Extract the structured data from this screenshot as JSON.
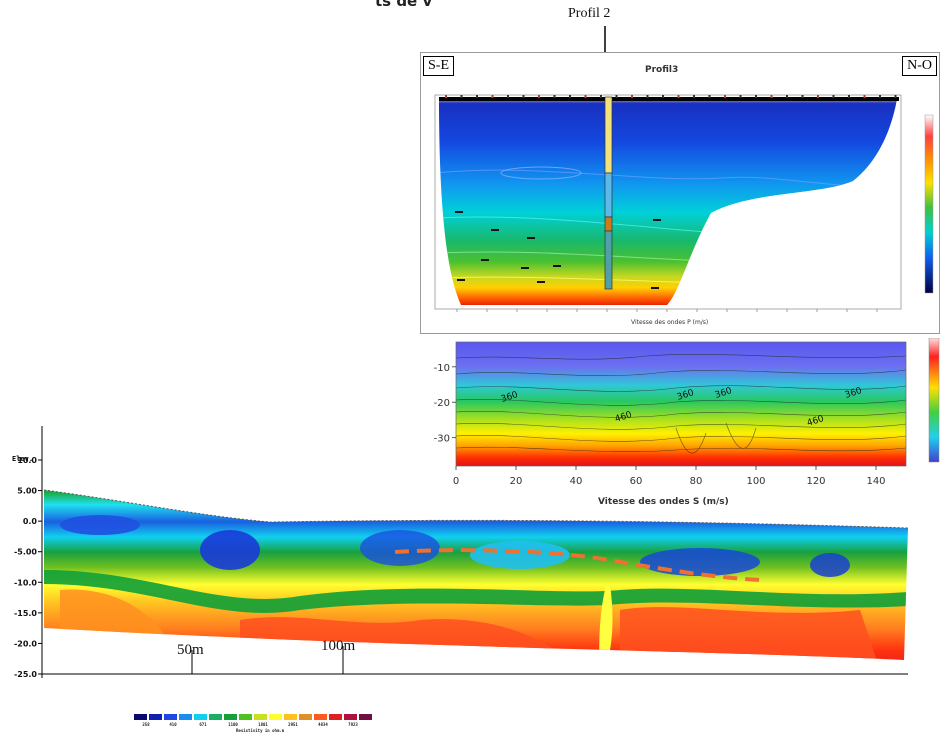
{
  "page": {
    "header_fragment": "ts de v",
    "profile_marker": "Profil 2"
  },
  "p_wave": {
    "title": "Profil3",
    "left_label": "S-E",
    "right_label": "N-O",
    "xlabel": "Vitesse des ondes P (m/s)",
    "colors": [
      "#000044",
      "#0000cc",
      "#1f5fff",
      "#00b8ff",
      "#00d6c8",
      "#19b84a",
      "#9fd21f",
      "#ffe800",
      "#ffa000",
      "#ff4800",
      "#e00000",
      "#ffffff"
    ]
  },
  "s_wave": {
    "xlabel": "Vitesse des ondes S (m/s)",
    "x_ticks": [
      "0",
      "20",
      "40",
      "60",
      "80",
      "100",
      "120",
      "140"
    ],
    "y_ticks": [
      "-10",
      "-20",
      "-30"
    ],
    "contour_labels": [
      "360",
      "360",
      "360",
      "460",
      "460",
      "360"
    ]
  },
  "ert": {
    "elev_label": "Elev.",
    "y_ticks": [
      "10.0",
      "5.00",
      "0.0",
      "-5.00",
      "-10.0",
      "-15.0",
      "-20.0",
      "-25.0"
    ],
    "distance_marks": [
      "50m",
      "100m"
    ],
    "colorbar_values": [
      "258",
      "410",
      "671",
      "1100",
      "1801",
      "2951",
      "4834",
      "7923"
    ],
    "colorbar_label": "Resistivity in ohm.m",
    "colors": [
      "#0a0a6e",
      "#1020b0",
      "#2048e0",
      "#1a8cf0",
      "#10d0f0",
      "#18b060",
      "#16a03a",
      "#4fc020",
      "#c8e020",
      "#ffff30",
      "#ffc020",
      "#e0902a",
      "#ff5a1e",
      "#e02020",
      "#b01040",
      "#701040"
    ]
  },
  "chart_data": [
    {
      "type": "heatmap",
      "title": "Profil3",
      "xlabel": "Vitesse des ondes P (m/s)",
      "annotations": [
        "S-E",
        "N-O",
        "Profil 2"
      ]
    },
    {
      "type": "heatmap",
      "xlabel": "Vitesse des ondes S (m/s)",
      "x_ticks": [
        0,
        20,
        40,
        60,
        80,
        100,
        120,
        140
      ],
      "y_ticks": [
        -10,
        -20,
        -30
      ],
      "xlim": [
        0,
        150
      ],
      "ylim": [
        -38,
        -3
      ],
      "contour_labels": [
        360,
        360,
        360,
        460,
        460,
        360
      ]
    },
    {
      "type": "heatmap",
      "ylabel": "Elev.",
      "y_ticks": [
        10.0,
        5.0,
        0.0,
        -5.0,
        -10.0,
        -15.0,
        -20.0,
        -25.0
      ],
      "ylim": [
        -25,
        10
      ],
      "distance_marks": [
        "50m",
        "100m"
      ],
      "colorbar": {
        "values": [
          258,
          410,
          671,
          1100,
          1801,
          2951,
          4834,
          7923
        ],
        "label": "Resistivity in ohm.m"
      }
    }
  ]
}
